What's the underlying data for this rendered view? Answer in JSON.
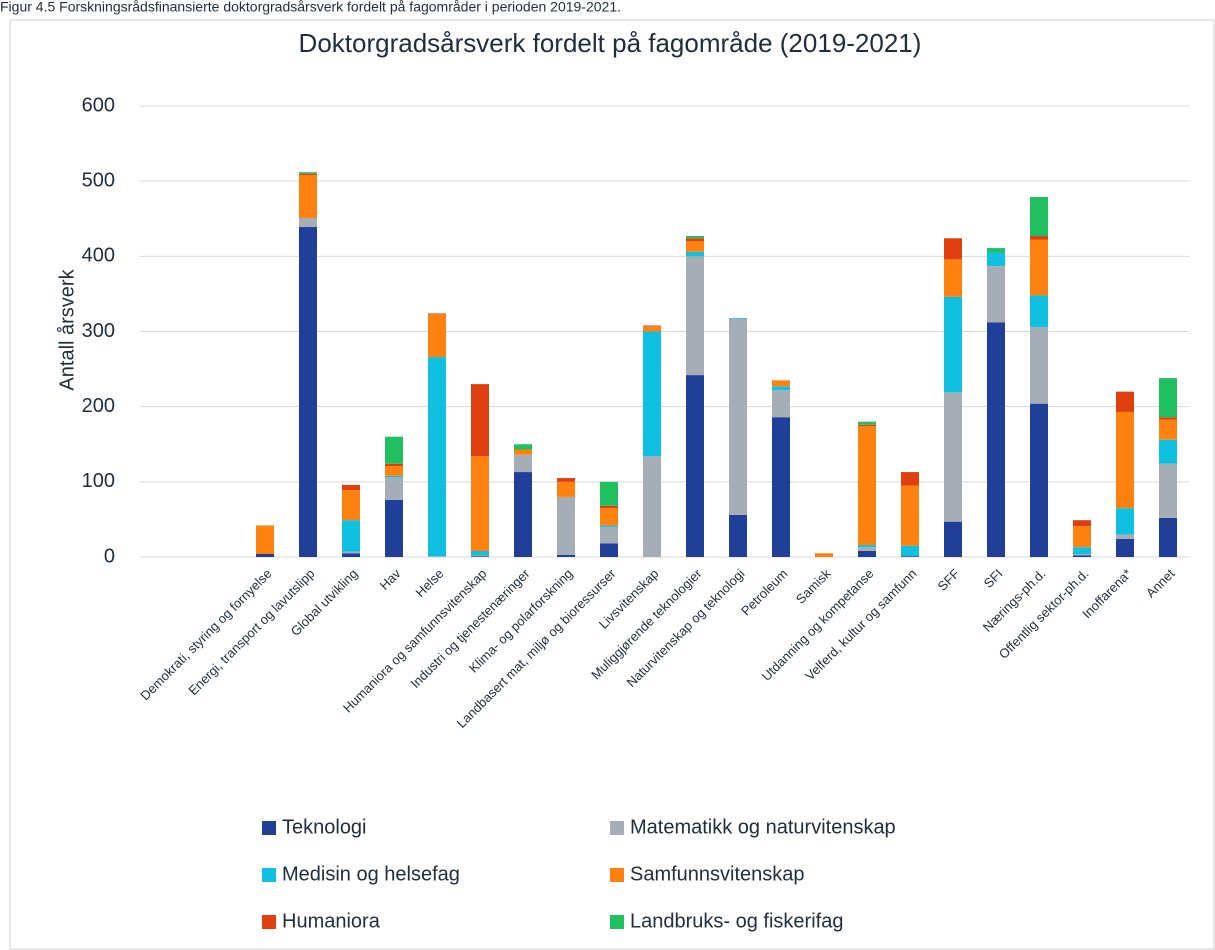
{
  "caption": "Figur 4.5 Forskningsrådsfinansierte doktorgradsårsverk fordelt på fagområder i perioden 2019-2021.",
  "chart_data": {
    "type": "stacked_bar",
    "title": "Doktorgradsårsverk fordelt på fagområde (2019-2021)",
    "y_label": "Antall årsverk",
    "categories": [
      "Demokrati, styring og fornyelse",
      "Energi, transport og lavutslipp",
      "Global utvikling",
      "Hav",
      "Helse",
      "Humaniora og samfunnsvitenskap",
      "Industri og tjenestenæringer",
      "Klima- og polarforskning",
      "Landbasert mat, miljø og bioressurser",
      "Livsvitenskap",
      "Muliggjørende teknologier",
      "Naturvitenskap og teknologi",
      "Petroleum",
      "Samisk",
      "Utdanning og kompetanse",
      "Velferd, kultur og samfunn",
      "SFF",
      "SFI",
      "Nærings-ph.d.",
      "Offentlig sektor-ph.d.",
      "Inoffarena*",
      "Annet"
    ],
    "series": [
      {
        "name": "Teknologi",
        "color": "#203f99",
        "values": [
          4,
          439,
          5,
          76,
          0,
          1,
          113,
          3,
          18,
          0,
          242,
          56,
          186,
          0,
          8,
          1,
          47,
          312,
          204,
          2,
          24,
          52
        ]
      },
      {
        "name": "Matematikk og naturvitenskap",
        "color": "#a5aeb6",
        "values": [
          0,
          12,
          2,
          30,
          1,
          1,
          23,
          77,
          22,
          134,
          158,
          261,
          36,
          0,
          5,
          0,
          172,
          75,
          102,
          2,
          6,
          72
        ]
      },
      {
        "name": "Medisin og helsefag",
        "color": "#10c0e0",
        "values": [
          0,
          0,
          42,
          2,
          265,
          6,
          0,
          0,
          2,
          166,
          6,
          1,
          5,
          0,
          3,
          14,
          127,
          18,
          42,
          9,
          35,
          32
        ]
      },
      {
        "name": "Samfunnsvitenskap",
        "color": "#ff8210",
        "values": [
          38,
          57,
          40,
          13,
          57,
          126,
          7,
          20,
          23,
          7,
          14,
          0,
          8,
          5,
          158,
          80,
          50,
          0,
          74,
          28,
          128,
          27
        ]
      },
      {
        "name": "Humaniora",
        "color": "#e04010",
        "values": [
          0,
          2,
          7,
          3,
          1,
          96,
          0,
          5,
          3,
          1,
          4,
          0,
          0,
          0,
          2,
          18,
          28,
          0,
          5,
          8,
          27,
          3
        ]
      },
      {
        "name": "Landbruks- og fiskerifag",
        "color": "#20c060",
        "values": [
          0,
          2,
          0,
          36,
          0,
          0,
          7,
          0,
          32,
          0,
          3,
          0,
          0,
          0,
          4,
          0,
          0,
          6,
          52,
          0,
          0,
          52
        ]
      }
    ],
    "ylim": [
      0,
      600
    ],
    "yticks": [
      0,
      100,
      200,
      300,
      400,
      500,
      600
    ],
    "grid": true
  }
}
